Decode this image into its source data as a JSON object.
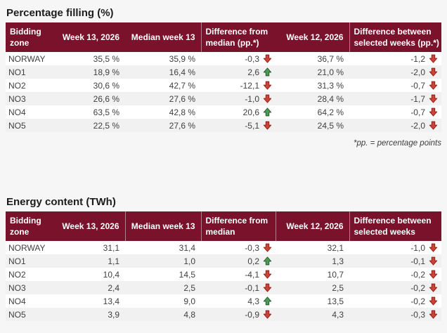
{
  "app": {
    "background": "#f6f6f6",
    "header_bg": "#7a122b",
    "arrow_down_color": "#cc4337",
    "arrow_up_color": "#4e9b55"
  },
  "footnote": "*pp. = percentage points",
  "tables": [
    {
      "title": "Percentage filling (%)",
      "headers": {
        "zone": {
          "label": "Bidding zone",
          "lines": [
            "Bidding",
            "zone"
          ]
        },
        "week13": {
          "label": "Week 13, 2026",
          "lines": [
            "Week 13, 2026"
          ]
        },
        "median_week13": {
          "label": "Median week 13",
          "lines": [
            "Median week 13"
          ]
        },
        "diff_from_median": {
          "label": "Difference from median (pp.*)",
          "lines": [
            "Difference from",
            "median (pp.*)"
          ]
        },
        "week12": {
          "label": "Week 12, 2026",
          "lines": [
            "Week 12, 2026"
          ]
        },
        "diff_selected_weeks": {
          "label": "Difference between selected weeks (pp.*)",
          "lines": [
            "Difference between",
            "selected weeks (pp.*)"
          ]
        }
      },
      "rows": [
        {
          "zone": "NORWAY",
          "week13": "35,5 %",
          "median_week13": "35,9 %",
          "diff_from_median": {
            "value": "-0,3",
            "direction": "down"
          },
          "week12": "36,7 %",
          "diff_selected_weeks": {
            "value": "-1,2",
            "direction": "down"
          }
        },
        {
          "zone": "NO1",
          "week13": "18,9 %",
          "median_week13": "16,4 %",
          "diff_from_median": {
            "value": "2,6",
            "direction": "up"
          },
          "week12": "21,0 %",
          "diff_selected_weeks": {
            "value": "-2,0",
            "direction": "down"
          }
        },
        {
          "zone": "NO2",
          "week13": "30,6 %",
          "median_week13": "42,7 %",
          "diff_from_median": {
            "value": "-12,1",
            "direction": "down"
          },
          "week12": "31,3 %",
          "diff_selected_weeks": {
            "value": "-0,7",
            "direction": "down"
          }
        },
        {
          "zone": "NO3",
          "week13": "26,6 %",
          "median_week13": "27,6 %",
          "diff_from_median": {
            "value": "-1,0",
            "direction": "down"
          },
          "week12": "28,4 %",
          "diff_selected_weeks": {
            "value": "-1,7",
            "direction": "down"
          }
        },
        {
          "zone": "NO4",
          "week13": "63,5 %",
          "median_week13": "42,8 %",
          "diff_from_median": {
            "value": "20,6",
            "direction": "up"
          },
          "week12": "64,2 %",
          "diff_selected_weeks": {
            "value": "-0,7",
            "direction": "down"
          }
        },
        {
          "zone": "NO5",
          "week13": "22,5 %",
          "median_week13": "27,6 %",
          "diff_from_median": {
            "value": "-5,1",
            "direction": "down"
          },
          "week12": "24,5 %",
          "diff_selected_weeks": {
            "value": "-2,0",
            "direction": "down"
          }
        }
      ]
    },
    {
      "title": "Energy content (TWh)",
      "headers": {
        "zone": {
          "label": "Bidding zone",
          "lines": [
            "Bidding",
            "zone"
          ]
        },
        "week13": {
          "label": "Week 13, 2026",
          "lines": [
            "Week 13, 2026"
          ]
        },
        "median_week13": {
          "label": "Median week 13",
          "lines": [
            "Median week 13"
          ]
        },
        "diff_from_median": {
          "label": "Difference from median",
          "lines": [
            "Difference from",
            "median"
          ]
        },
        "week12": {
          "label": "Week 12, 2026",
          "lines": [
            "Week 12, 2026"
          ]
        },
        "diff_selected_weeks": {
          "label": "Difference between selected weeks",
          "lines": [
            "Difference between",
            "selected weeks"
          ]
        }
      },
      "rows": [
        {
          "zone": "NORWAY",
          "week13": "31,1",
          "median_week13": "31,4",
          "diff_from_median": {
            "value": "-0,3",
            "direction": "down"
          },
          "week12": "32,1",
          "diff_selected_weeks": {
            "value": "-1,0",
            "direction": "down"
          }
        },
        {
          "zone": "NO1",
          "week13": "1,1",
          "median_week13": "1,0",
          "diff_from_median": {
            "value": "0,2",
            "direction": "up"
          },
          "week12": "1,3",
          "diff_selected_weeks": {
            "value": "-0,1",
            "direction": "down"
          }
        },
        {
          "zone": "NO2",
          "week13": "10,4",
          "median_week13": "14,5",
          "diff_from_median": {
            "value": "-4,1",
            "direction": "down"
          },
          "week12": "10,7",
          "diff_selected_weeks": {
            "value": "-0,2",
            "direction": "down"
          }
        },
        {
          "zone": "NO3",
          "week13": "2,4",
          "median_week13": "2,5",
          "diff_from_median": {
            "value": "-0,1",
            "direction": "down"
          },
          "week12": "2,5",
          "diff_selected_weeks": {
            "value": "-0,2",
            "direction": "down"
          }
        },
        {
          "zone": "NO4",
          "week13": "13,4",
          "median_week13": "9,0",
          "diff_from_median": {
            "value": "4,3",
            "direction": "up"
          },
          "week12": "13,5",
          "diff_selected_weeks": {
            "value": "-0,2",
            "direction": "down"
          }
        },
        {
          "zone": "NO5",
          "week13": "3,9",
          "median_week13": "4,8",
          "diff_from_median": {
            "value": "-0,9",
            "direction": "down"
          },
          "week12": "4,3",
          "diff_selected_weeks": {
            "value": "-0,3",
            "direction": "down"
          }
        }
      ]
    }
  ]
}
